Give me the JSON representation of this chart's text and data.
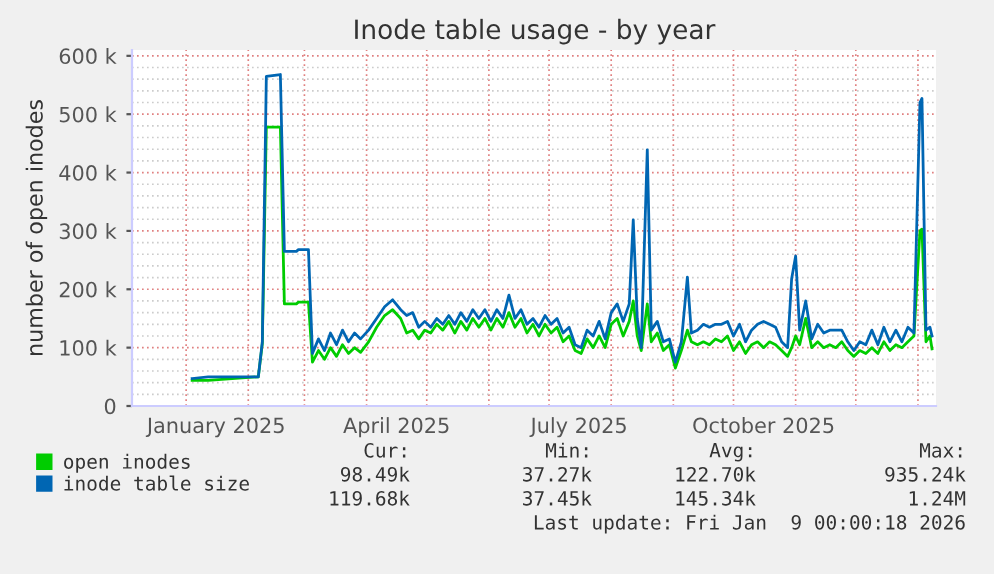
{
  "chart_data": {
    "type": "line",
    "title": "Inode table usage - by year",
    "ylabel": "number of open inodes",
    "x": [
      "2025-01-04",
      "2025-01-12",
      "2025-02-06",
      "2025-02-08",
      "2025-02-10",
      "2025-02-17",
      "2025-02-19",
      "2025-02-25",
      "2025-02-26",
      "2025-03-03",
      "2025-03-05",
      "2025-03-08",
      "2025-03-11",
      "2025-03-14",
      "2025-03-17",
      "2025-03-20",
      "2025-03-23",
      "2025-03-26",
      "2025-03-29",
      "2025-04-02",
      "2025-04-06",
      "2025-04-10",
      "2025-04-14",
      "2025-04-18",
      "2025-04-21",
      "2025-04-24",
      "2025-04-27",
      "2025-04-30",
      "2025-05-03",
      "2025-05-06",
      "2025-05-09",
      "2025-05-12",
      "2025-05-15",
      "2025-05-18",
      "2025-05-21",
      "2025-05-24",
      "2025-05-27",
      "2025-05-30",
      "2025-06-02",
      "2025-06-05",
      "2025-06-08",
      "2025-06-11",
      "2025-06-14",
      "2025-06-17",
      "2025-06-20",
      "2025-06-23",
      "2025-06-26",
      "2025-06-29",
      "2025-07-02",
      "2025-07-05",
      "2025-07-08",
      "2025-07-11",
      "2025-07-14",
      "2025-07-17",
      "2025-07-20",
      "2025-07-23",
      "2025-07-26",
      "2025-07-29",
      "2025-08-01",
      "2025-08-04",
      "2025-08-07",
      "2025-08-10",
      "2025-08-12",
      "2025-08-14",
      "2025-08-16",
      "2025-08-19",
      "2025-08-21",
      "2025-08-24",
      "2025-08-27",
      "2025-08-30",
      "2025-09-02",
      "2025-09-05",
      "2025-09-08",
      "2025-09-10",
      "2025-09-13",
      "2025-09-16",
      "2025-09-19",
      "2025-09-22",
      "2025-09-25",
      "2025-09-28",
      "2025-10-01",
      "2025-10-04",
      "2025-10-07",
      "2025-10-10",
      "2025-10-13",
      "2025-10-16",
      "2025-10-19",
      "2025-10-22",
      "2025-10-25",
      "2025-10-28",
      "2025-10-30",
      "2025-11-01",
      "2025-11-03",
      "2025-11-06",
      "2025-11-09",
      "2025-11-12",
      "2025-11-15",
      "2025-11-18",
      "2025-11-21",
      "2025-11-24",
      "2025-11-27",
      "2025-11-30",
      "2025-12-03",
      "2025-12-06",
      "2025-12-09",
      "2025-12-12",
      "2025-12-15",
      "2025-12-18",
      "2025-12-21",
      "2025-12-24",
      "2025-12-27",
      "2025-12-30",
      "2026-01-02",
      "2026-01-03",
      "2026-01-05",
      "2026-01-07",
      "2026-01-08"
    ],
    "series": [
      {
        "name": "open inodes",
        "color": "#00cc00",
        "values": [
          44000,
          44000,
          50000,
          107000,
          478000,
          478000,
          175000,
          175000,
          178000,
          178000,
          75000,
          95000,
          80000,
          100000,
          85000,
          105000,
          90000,
          100000,
          92000,
          110000,
          135000,
          155000,
          165000,
          150000,
          125000,
          130000,
          115000,
          130000,
          125000,
          140000,
          130000,
          145000,
          125000,
          145000,
          130000,
          150000,
          135000,
          150000,
          130000,
          150000,
          135000,
          160000,
          135000,
          150000,
          125000,
          140000,
          120000,
          140000,
          125000,
          135000,
          110000,
          120000,
          95000,
          90000,
          115000,
          100000,
          120000,
          100000,
          140000,
          150000,
          120000,
          145000,
          180000,
          120000,
          95000,
          175000,
          110000,
          125000,
          95000,
          105000,
          65000,
          95000,
          130000,
          110000,
          105000,
          110000,
          105000,
          115000,
          110000,
          120000,
          95000,
          110000,
          90000,
          105000,
          110000,
          100000,
          110000,
          105000,
          95000,
          85000,
          100000,
          120000,
          105000,
          150000,
          100000,
          110000,
          100000,
          105000,
          100000,
          110000,
          95000,
          85000,
          95000,
          90000,
          100000,
          90000,
          110000,
          95000,
          105000,
          100000,
          110000,
          120000,
          300000,
          303000,
          110000,
          120000,
          98000
        ]
      },
      {
        "name": "inode table size",
        "color": "#0066b3",
        "values": [
          47000,
          50000,
          50000,
          110000,
          565000,
          568000,
          265000,
          265000,
          268000,
          268000,
          90000,
          115000,
          95000,
          125000,
          105000,
          130000,
          110000,
          125000,
          115000,
          130000,
          150000,
          170000,
          182000,
          165000,
          155000,
          160000,
          135000,
          145000,
          135000,
          150000,
          140000,
          155000,
          140000,
          160000,
          145000,
          165000,
          150000,
          165000,
          145000,
          165000,
          150000,
          190000,
          150000,
          165000,
          140000,
          150000,
          135000,
          155000,
          140000,
          150000,
          125000,
          135000,
          105000,
          100000,
          130000,
          120000,
          145000,
          115000,
          160000,
          175000,
          145000,
          175000,
          319000,
          150000,
          100000,
          439000,
          130000,
          145000,
          110000,
          115000,
          75000,
          110000,
          221000,
          125000,
          130000,
          140000,
          135000,
          140000,
          140000,
          145000,
          120000,
          140000,
          110000,
          130000,
          140000,
          145000,
          140000,
          135000,
          110000,
          100000,
          218000,
          257000,
          130000,
          180000,
          115000,
          140000,
          125000,
          130000,
          130000,
          130000,
          110000,
          95000,
          110000,
          105000,
          130000,
          105000,
          135000,
          110000,
          130000,
          110000,
          135000,
          125000,
          520000,
          527000,
          130000,
          135000,
          120000
        ]
      }
    ],
    "xlim": [
      "2024-12-05",
      "2026-01-10"
    ],
    "xticks": [
      {
        "value": "2025-01-01",
        "label": null
      },
      {
        "value": "2025-01-16",
        "label": "January 2025"
      },
      {
        "value": "2025-02-01",
        "label": null
      },
      {
        "value": "2025-03-01",
        "label": null
      },
      {
        "value": "2025-04-01",
        "label": null
      },
      {
        "value": "2025-04-16",
        "label": "April 2025"
      },
      {
        "value": "2025-05-01",
        "label": null
      },
      {
        "value": "2025-06-01",
        "label": null
      },
      {
        "value": "2025-07-01",
        "label": null
      },
      {
        "value": "2025-07-16",
        "label": "July 2025"
      },
      {
        "value": "2025-08-01",
        "label": null
      },
      {
        "value": "2025-09-01",
        "label": null
      },
      {
        "value": "2025-10-01",
        "label": null
      },
      {
        "value": "2025-10-16",
        "label": "October 2025"
      },
      {
        "value": "2025-11-01",
        "label": null
      },
      {
        "value": "2025-12-01",
        "label": null
      },
      {
        "value": "2026-01-01",
        "label": null
      }
    ],
    "ylim": [
      0,
      610000
    ],
    "yticks": [
      {
        "value": 0,
        "label": "0"
      },
      {
        "value": 100000,
        "label": "100 k"
      },
      {
        "value": 200000,
        "label": "200 k"
      },
      {
        "value": 300000,
        "label": "300 k"
      },
      {
        "value": 400000,
        "label": "400 k"
      },
      {
        "value": 500000,
        "label": "500 k"
      },
      {
        "value": 600000,
        "label": "600 k"
      }
    ],
    "grid": true,
    "legend": "bottom left",
    "line_style": "solid",
    "marker": "none",
    "annotations": [
      "Cur:",
      "Min:",
      "Avg:",
      "Max:",
      "98.49k",
      "37.27k",
      "122.70k",
      "935.24k",
      "119.68k",
      "37.45k",
      "145.34k",
      "1.24M",
      "Last update: Fri Jan  9 00:00:18 2026"
    ]
  }
}
